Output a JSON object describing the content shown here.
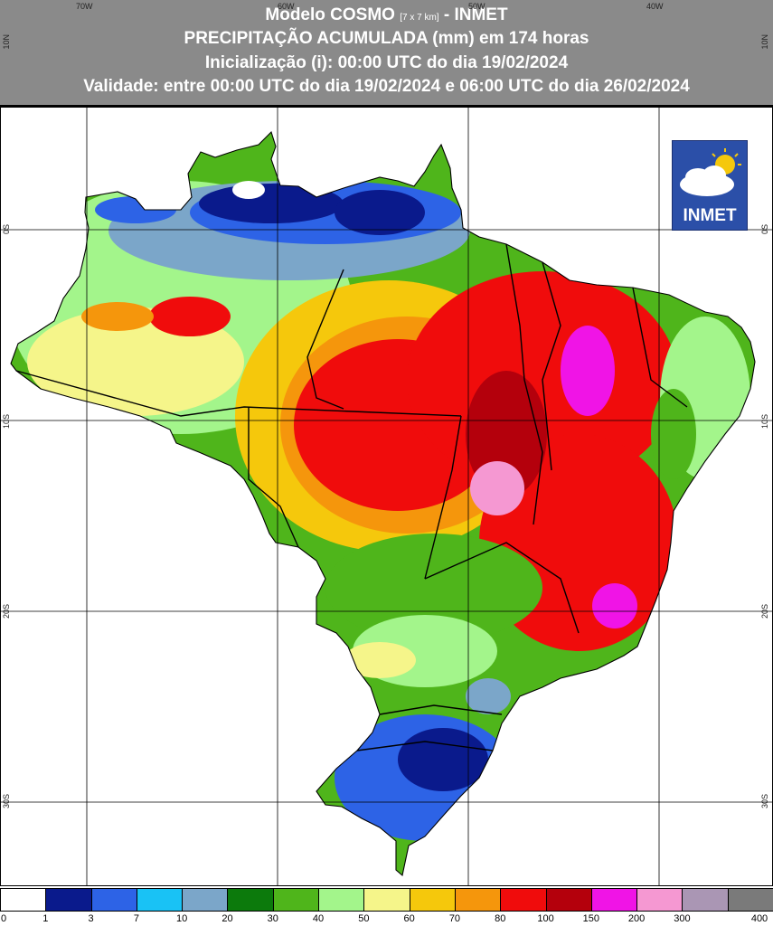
{
  "header": {
    "line1_pre": "Modelo COSMO",
    "line1_res": "[7 x 7 km]",
    "line1_post": "- INMET",
    "line2": "PRECIPITAÇÃO ACUMULADA (mm) em 174 horas",
    "line3": "Inicialização (i): 00:00 UTC do dia 19/02/2024",
    "line4": "Validade: entre 00:00 UTC do dia 19/02/2024 e 06:00 UTC do dia 26/02/2024"
  },
  "longitude_labels": [
    "70W",
    "60W",
    "50W",
    "40W"
  ],
  "latitude_labels_left": [
    "10N",
    "0S",
    "10S",
    "20S",
    "30S"
  ],
  "latitude_labels_right": [
    "10N",
    "0S",
    "10S",
    "20S",
    "30S"
  ],
  "logo": {
    "text": "INMET",
    "icon": "cloud-sun-icon"
  },
  "legend": {
    "ticks": [
      "0",
      "1",
      "3",
      "7",
      "10",
      "20",
      "30",
      "40",
      "50",
      "60",
      "70",
      "80",
      "100",
      "150",
      "200",
      "300",
      "400"
    ],
    "colors": [
      "#ffffff",
      "#0a1a8c",
      "#2d63e6",
      "#19c2f5",
      "#7ba6c9",
      "#0c7a0c",
      "#4fb51b",
      "#a3f58b",
      "#f5f58a",
      "#f5c80c",
      "#f5960c",
      "#f00c0c",
      "#b4000c",
      "#f014e6",
      "#f598d2",
      "#aa96b4",
      "#7a7a7a"
    ]
  }
}
